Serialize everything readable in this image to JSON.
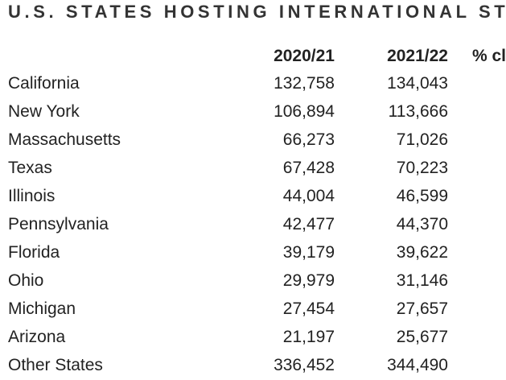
{
  "header": {
    "title": "U.S. STATES HOSTING INTERNATIONAL ST"
  },
  "table": {
    "columns": [
      "2020/21",
      "2021/22",
      "% cl"
    ],
    "rows": [
      [
        "California",
        "132,758",
        "134,043"
      ],
      [
        "New York",
        "106,894",
        "113,666"
      ],
      [
        "Massachusetts",
        "66,273",
        "71,026"
      ],
      [
        "Texas",
        "67,428",
        "70,223"
      ],
      [
        "Illinois",
        "44,004",
        "46,599"
      ],
      [
        "Pennsylvania",
        "42,477",
        "44,370"
      ],
      [
        "Florida",
        "39,179",
        "39,622"
      ],
      [
        "Ohio",
        "29,979",
        "31,146"
      ],
      [
        "Michigan",
        "27,454",
        "27,657"
      ],
      [
        "Arizona",
        "21,197",
        "25,677"
      ],
      [
        "Other States",
        "336,452",
        "344,490"
      ]
    ]
  }
}
